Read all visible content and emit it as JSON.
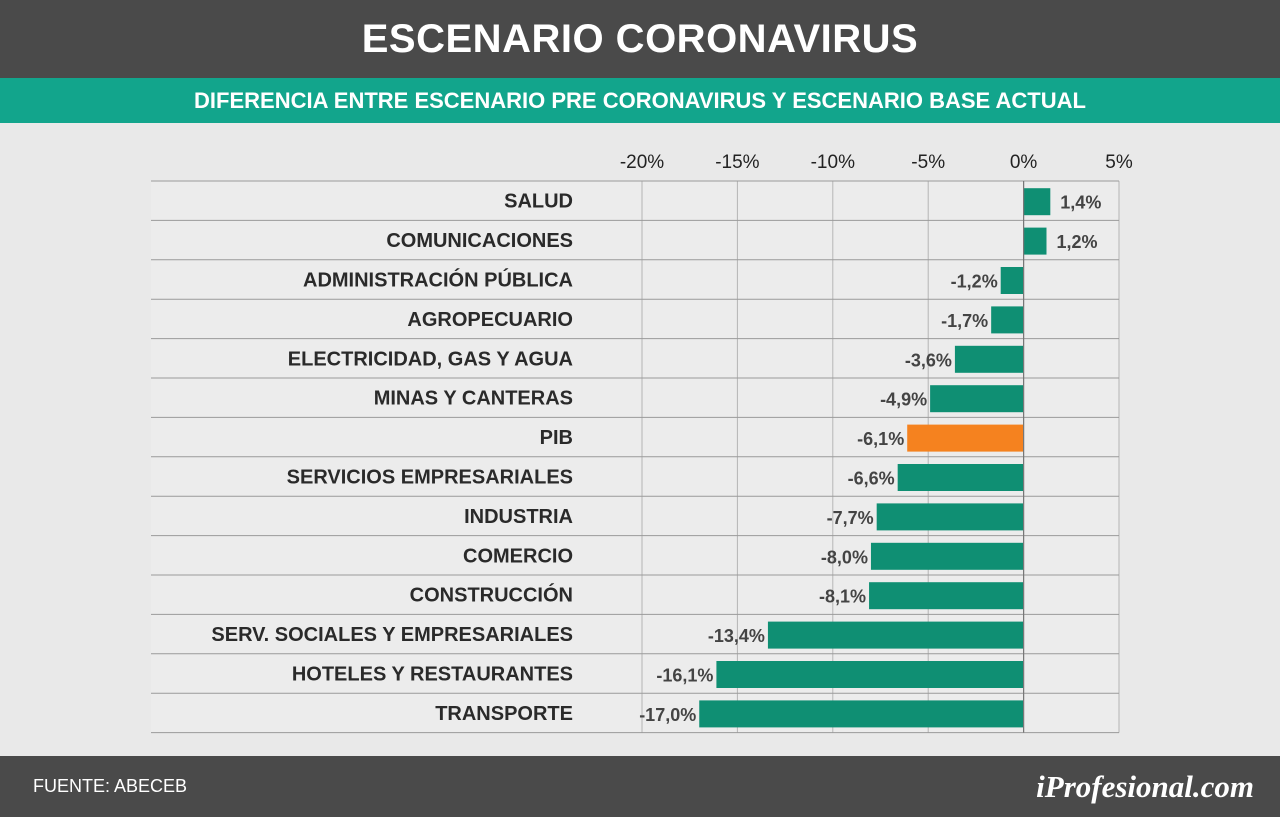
{
  "header": {
    "title": "ESCENARIO CORONAVIRUS",
    "subtitle": "DIFERENCIA ENTRE ESCENARIO PRE CORONAVIRUS Y ESCENARIO BASE ACTUAL"
  },
  "footer": {
    "source": "FUENTE: ABECEB",
    "logo": "iProfesional.com"
  },
  "colors": {
    "bar": "#0f8f73",
    "highlight": "#f5821f",
    "title_bg": "#4a4a4a",
    "subtitle_bg": "#12a58c"
  },
  "chart_data": {
    "type": "bar",
    "orientation": "horizontal",
    "title": "ESCENARIO CORONAVIRUS",
    "subtitle": "DIFERENCIA ENTRE ESCENARIO PRE CORONAVIRUS Y ESCENARIO BASE ACTUAL",
    "xlim": [
      -20,
      5
    ],
    "xticks": [
      -20,
      -15,
      -10,
      -5,
      0,
      5
    ],
    "xtick_labels": [
      "-20%",
      "-15%",
      "-10%",
      "-5%",
      "0%",
      "5%"
    ],
    "grid": true,
    "categories": [
      "SALUD",
      "COMUNICACIONES",
      "ADMINISTRACIÓN PÚBLICA",
      "AGROPECUARIO",
      "ELECTRICIDAD, GAS Y AGUA",
      "MINAS Y CANTERAS",
      "PIB",
      "SERVICIOS EMPRESARIALES",
      "INDUSTRIA",
      "COMERCIO",
      "CONSTRUCCIÓN",
      "SERV. SOCIALES Y EMPRESARIALES",
      "HOTELES Y RESTAURANTES",
      "TRANSPORTE"
    ],
    "values": [
      1.4,
      1.2,
      -1.2,
      -1.7,
      -3.6,
      -4.9,
      -6.1,
      -6.6,
      -7.7,
      -8.0,
      -8.1,
      -13.4,
      -16.1,
      -17.0
    ],
    "value_labels": [
      "1,4%",
      "1,2%",
      "-1,2%",
      "-1,7%",
      "-3,6%",
      "-4,9%",
      "-6,1%",
      "-6,6%",
      "-7,7%",
      "-8,0%",
      "-8,1%",
      "-13,4%",
      "-16,1%",
      "-17,0%"
    ],
    "highlighted_category": "PIB"
  }
}
